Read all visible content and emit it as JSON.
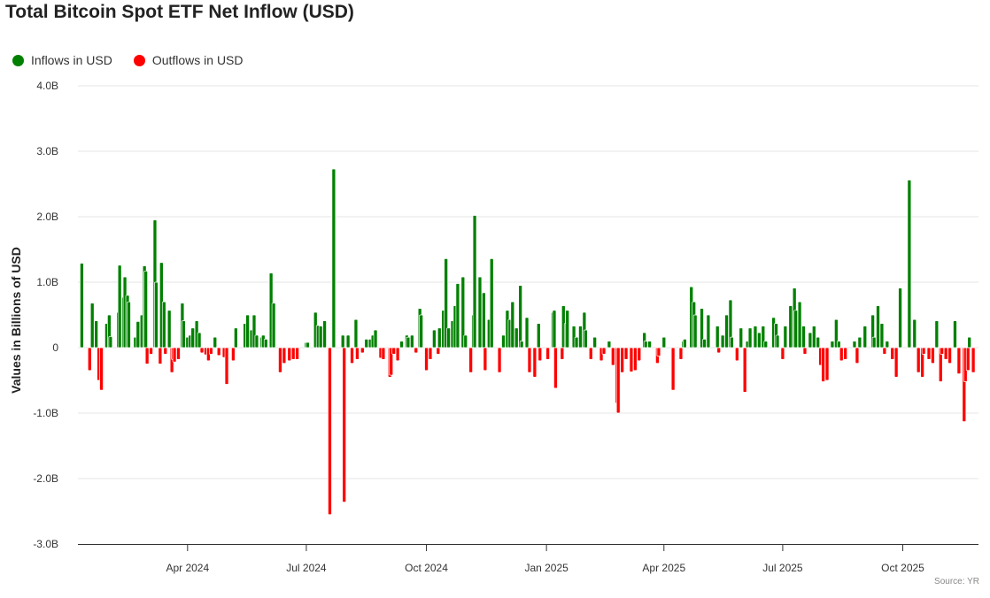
{
  "chart_data": {
    "type": "bar",
    "title": "Total Bitcoin Spot ETF Net Inflow (USD)",
    "ylabel": "Values in Billions of USD",
    "xlabel": "",
    "source": "Source: YR",
    "ylim": [
      -3.0,
      4.0
    ],
    "yticks": [
      {
        "v": 4,
        "label": "4.0B"
      },
      {
        "v": 3,
        "label": "3.0B"
      },
      {
        "v": 2,
        "label": "2.0B"
      },
      {
        "v": 1,
        "label": "1.0B"
      },
      {
        "v": 0,
        "label": "0"
      },
      {
        "v": -1,
        "label": "-1.0B"
      },
      {
        "v": -2,
        "label": "-2.0B"
      },
      {
        "v": -3,
        "label": "-3.0B"
      }
    ],
    "xlim": [
      "2024-01-08",
      "2025-11-28"
    ],
    "xticks": [
      {
        "date": "2024-04-01",
        "label": "Apr 2024"
      },
      {
        "date": "2024-07-01",
        "label": "Jul 2024"
      },
      {
        "date": "2024-10-01",
        "label": "Oct 2024"
      },
      {
        "date": "2025-01-01",
        "label": "Jan 2025"
      },
      {
        "date": "2025-04-01",
        "label": "Apr 2025"
      },
      {
        "date": "2025-07-01",
        "label": "Jul 2025"
      },
      {
        "date": "2025-10-01",
        "label": "Oct 2025"
      }
    ],
    "grid": true,
    "legend": {
      "position": "top-left",
      "items": [
        {
          "label": "Inflows in USD",
          "color": "#008000"
        },
        {
          "label": "Outflows in USD",
          "color": "#ff0000"
        }
      ]
    },
    "colors": {
      "inflow": "#008000",
      "outflow": "#ff0000"
    },
    "points": [
      [
        "2024-01-11",
        1.29
      ],
      [
        "2024-01-17",
        -0.35
      ],
      [
        "2024-01-19",
        0.68
      ],
      [
        "2024-01-22",
        0.41
      ],
      [
        "2024-01-24",
        -0.5
      ],
      [
        "2024-01-26",
        -0.65
      ],
      [
        "2024-01-30",
        0.37
      ],
      [
        "2024-02-01",
        0.5
      ],
      [
        "2024-02-02",
        0.17
      ],
      [
        "2024-02-08",
        0.54
      ],
      [
        "2024-02-09",
        1.26
      ],
      [
        "2024-02-12",
        0.77
      ],
      [
        "2024-02-13",
        1.08
      ],
      [
        "2024-02-15",
        0.8
      ],
      [
        "2024-02-16",
        0.7
      ],
      [
        "2024-02-21",
        0.16
      ],
      [
        "2024-02-23",
        0.4
      ],
      [
        "2024-02-26",
        0.5
      ],
      [
        "2024-02-28",
        1.25
      ],
      [
        "2024-02-29",
        1.17
      ],
      [
        "2024-03-01",
        -0.25
      ],
      [
        "2024-03-04",
        -0.1
      ],
      [
        "2024-03-07",
        1.95
      ],
      [
        "2024-03-08",
        1.0
      ],
      [
        "2024-03-11",
        -0.25
      ],
      [
        "2024-03-12",
        1.3
      ],
      [
        "2024-03-14",
        0.7
      ],
      [
        "2024-03-15",
        -0.1
      ],
      [
        "2024-03-18",
        0.57
      ],
      [
        "2024-03-20",
        -0.38
      ],
      [
        "2024-03-21",
        -0.18
      ],
      [
        "2024-03-22",
        -0.22
      ],
      [
        "2024-03-25",
        -0.18
      ],
      [
        "2024-03-28",
        0.68
      ],
      [
        "2024-03-29",
        0.41
      ],
      [
        "2024-04-01",
        0.16
      ],
      [
        "2024-04-03",
        0.19
      ],
      [
        "2024-04-05",
        0.3
      ],
      [
        "2024-04-08",
        0.41
      ],
      [
        "2024-04-10",
        0.23
      ],
      [
        "2024-04-12",
        -0.08
      ],
      [
        "2024-04-15",
        -0.11
      ],
      [
        "2024-04-17",
        -0.2
      ],
      [
        "2024-04-19",
        -0.1
      ],
      [
        "2024-04-22",
        0.16
      ],
      [
        "2024-04-25",
        -0.12
      ],
      [
        "2024-04-29",
        -0.15
      ],
      [
        "2024-05-01",
        -0.56
      ],
      [
        "2024-05-06",
        -0.2
      ],
      [
        "2024-05-08",
        0.3
      ],
      [
        "2024-05-15",
        0.37
      ],
      [
        "2024-05-17",
        0.5
      ],
      [
        "2024-05-20",
        0.27
      ],
      [
        "2024-05-22",
        0.5
      ],
      [
        "2024-05-24",
        0.19
      ],
      [
        "2024-05-28",
        0.16
      ],
      [
        "2024-05-29",
        0.19
      ],
      [
        "2024-05-31",
        0.13
      ],
      [
        "2024-06-04",
        1.14
      ],
      [
        "2024-06-06",
        0.68
      ],
      [
        "2024-06-11",
        -0.38
      ],
      [
        "2024-06-14",
        -0.24
      ],
      [
        "2024-06-18",
        -0.2
      ],
      [
        "2024-06-21",
        -0.18
      ],
      [
        "2024-06-24",
        -0.18
      ],
      [
        "2024-07-01",
        0.08
      ],
      [
        "2024-07-02",
        0.08
      ],
      [
        "2024-07-08",
        0.54
      ],
      [
        "2024-07-10",
        0.34
      ],
      [
        "2024-07-12",
        0.33
      ],
      [
        "2024-07-15",
        0.41
      ],
      [
        "2024-07-19",
        -2.55
      ],
      [
        "2024-07-22",
        2.73
      ],
      [
        "2024-07-29",
        0.19
      ],
      [
        "2024-07-30",
        -2.36
      ],
      [
        "2024-08-02",
        0.19
      ],
      [
        "2024-08-05",
        -0.24
      ],
      [
        "2024-08-08",
        0.43
      ],
      [
        "2024-08-09",
        -0.18
      ],
      [
        "2024-08-13",
        -0.08
      ],
      [
        "2024-08-16",
        0.13
      ],
      [
        "2024-08-19",
        0.13
      ],
      [
        "2024-08-21",
        0.19
      ],
      [
        "2024-08-23",
        0.27
      ],
      [
        "2024-08-27",
        -0.16
      ],
      [
        "2024-08-29",
        -0.18
      ],
      [
        "2024-09-03",
        -0.45
      ],
      [
        "2024-09-04",
        -0.42
      ],
      [
        "2024-09-06",
        -0.1
      ],
      [
        "2024-09-09",
        -0.2
      ],
      [
        "2024-09-12",
        0.1
      ],
      [
        "2024-09-16",
        0.19
      ],
      [
        "2024-09-17",
        0.16
      ],
      [
        "2024-09-20",
        0.19
      ],
      [
        "2024-09-23",
        -0.08
      ],
      [
        "2024-09-26",
        0.6
      ],
      [
        "2024-09-27",
        0.5
      ],
      [
        "2024-10-01",
        -0.35
      ],
      [
        "2024-10-04",
        -0.18
      ],
      [
        "2024-10-07",
        0.27
      ],
      [
        "2024-10-10",
        -0.1
      ],
      [
        "2024-10-11",
        0.3
      ],
      [
        "2024-10-14",
        0.57
      ],
      [
        "2024-10-16",
        1.36
      ],
      [
        "2024-10-18",
        0.3
      ],
      [
        "2024-10-21",
        0.41
      ],
      [
        "2024-10-23",
        0.64
      ],
      [
        "2024-10-25",
        0.98
      ],
      [
        "2024-10-29",
        1.08
      ],
      [
        "2024-10-31",
        0.19
      ],
      [
        "2024-11-04",
        -0.38
      ],
      [
        "2024-11-06",
        0.5
      ],
      [
        "2024-11-07",
        2.02
      ],
      [
        "2024-11-11",
        1.08
      ],
      [
        "2024-11-14",
        0.84
      ],
      [
        "2024-11-15",
        -0.35
      ],
      [
        "2024-11-18",
        0.43
      ],
      [
        "2024-11-20",
        1.36
      ],
      [
        "2024-11-26",
        -0.38
      ],
      [
        "2024-11-29",
        0.19
      ],
      [
        "2024-12-02",
        0.57
      ],
      [
        "2024-12-04",
        0.43
      ],
      [
        "2024-12-06",
        0.7
      ],
      [
        "2024-12-09",
        0.3
      ],
      [
        "2024-12-12",
        0.95
      ],
      [
        "2024-12-13",
        0.1
      ],
      [
        "2024-12-17",
        0.46
      ],
      [
        "2024-12-19",
        -0.38
      ],
      [
        "2024-12-23",
        -0.45
      ],
      [
        "2024-12-26",
        0.37
      ],
      [
        "2024-12-27",
        -0.2
      ],
      [
        "2025-01-02",
        -0.18
      ],
      [
        "2025-01-06",
        0.54
      ],
      [
        "2025-01-07",
        0.57
      ],
      [
        "2025-01-08",
        -0.62
      ],
      [
        "2025-01-13",
        -0.18
      ],
      [
        "2025-01-14",
        0.64
      ],
      [
        "2025-01-16",
        0.37
      ],
      [
        "2025-01-17",
        0.57
      ],
      [
        "2025-01-22",
        0.33
      ],
      [
        "2025-01-24",
        0.16
      ],
      [
        "2025-01-27",
        0.33
      ],
      [
        "2025-01-30",
        0.54
      ],
      [
        "2025-01-31",
        0.27
      ],
      [
        "2025-02-04",
        -0.18
      ],
      [
        "2025-02-07",
        0.16
      ],
      [
        "2025-02-12",
        -0.2
      ],
      [
        "2025-02-14",
        -0.1
      ],
      [
        "2025-02-18",
        0.1
      ],
      [
        "2025-02-21",
        -0.27
      ],
      [
        "2025-02-24",
        -0.85
      ],
      [
        "2025-02-25",
        -1.0
      ],
      [
        "2025-02-28",
        -0.38
      ],
      [
        "2025-03-03",
        -0.18
      ],
      [
        "2025-03-07",
        -0.37
      ],
      [
        "2025-03-10",
        -0.35
      ],
      [
        "2025-03-13",
        -0.2
      ],
      [
        "2025-03-17",
        0.23
      ],
      [
        "2025-03-18",
        0.1
      ],
      [
        "2025-03-21",
        0.1
      ],
      [
        "2025-03-27",
        -0.24
      ],
      [
        "2025-03-28",
        -0.13
      ],
      [
        "2025-04-01",
        0.16
      ],
      [
        "2025-04-08",
        -0.65
      ],
      [
        "2025-04-14",
        -0.18
      ],
      [
        "2025-04-16",
        0.1
      ],
      [
        "2025-04-17",
        0.13
      ],
      [
        "2025-04-22",
        0.93
      ],
      [
        "2025-04-24",
        0.7
      ],
      [
        "2025-04-25",
        0.5
      ],
      [
        "2025-04-30",
        0.6
      ],
      [
        "2025-05-02",
        0.13
      ],
      [
        "2025-05-05",
        0.5
      ],
      [
        "2025-05-12",
        0.33
      ],
      [
        "2025-05-13",
        -0.08
      ],
      [
        "2025-05-16",
        0.19
      ],
      [
        "2025-05-19",
        0.5
      ],
      [
        "2025-05-22",
        0.73
      ],
      [
        "2025-05-23",
        0.16
      ],
      [
        "2025-05-27",
        -0.2
      ],
      [
        "2025-05-30",
        0.3
      ],
      [
        "2025-06-02",
        -0.68
      ],
      [
        "2025-06-04",
        0.1
      ],
      [
        "2025-06-06",
        0.3
      ],
      [
        "2025-06-10",
        0.33
      ],
      [
        "2025-06-13",
        0.23
      ],
      [
        "2025-06-16",
        0.33
      ],
      [
        "2025-06-18",
        0.1
      ],
      [
        "2025-06-24",
        0.46
      ],
      [
        "2025-06-26",
        0.37
      ],
      [
        "2025-06-27",
        0.19
      ],
      [
        "2025-07-01",
        -0.18
      ],
      [
        "2025-07-03",
        0.33
      ],
      [
        "2025-07-07",
        0.64
      ],
      [
        "2025-07-10",
        0.91
      ],
      [
        "2025-07-11",
        0.57
      ],
      [
        "2025-07-14",
        0.7
      ],
      [
        "2025-07-17",
        0.33
      ],
      [
        "2025-07-18",
        -0.1
      ],
      [
        "2025-07-22",
        0.23
      ],
      [
        "2025-07-25",
        0.33
      ],
      [
        "2025-07-28",
        0.16
      ],
      [
        "2025-07-30",
        -0.27
      ],
      [
        "2025-08-01",
        -0.52
      ],
      [
        "2025-08-04",
        -0.5
      ],
      [
        "2025-08-08",
        0.1
      ],
      [
        "2025-08-11",
        0.43
      ],
      [
        "2025-08-13",
        0.1
      ],
      [
        "2025-08-15",
        -0.2
      ],
      [
        "2025-08-18",
        -0.18
      ],
      [
        "2025-08-25",
        0.1
      ],
      [
        "2025-08-27",
        -0.24
      ],
      [
        "2025-08-29",
        0.16
      ],
      [
        "2025-09-02",
        0.33
      ],
      [
        "2025-09-08",
        0.5
      ],
      [
        "2025-09-09",
        0.16
      ],
      [
        "2025-09-12",
        0.64
      ],
      [
        "2025-09-15",
        0.37
      ],
      [
        "2025-09-17",
        -0.1
      ],
      [
        "2025-09-19",
        0.1
      ],
      [
        "2025-09-23",
        -0.18
      ],
      [
        "2025-09-26",
        -0.45
      ],
      [
        "2025-09-29",
        0.91
      ],
      [
        "2025-10-06",
        2.56
      ],
      [
        "2025-10-10",
        0.43
      ],
      [
        "2025-10-13",
        -0.38
      ],
      [
        "2025-10-16",
        -0.45
      ],
      [
        "2025-10-17",
        -0.1
      ],
      [
        "2025-10-21",
        -0.18
      ],
      [
        "2025-10-24",
        -0.24
      ],
      [
        "2025-10-27",
        0.41
      ],
      [
        "2025-10-30",
        -0.52
      ],
      [
        "2025-10-31",
        -0.1
      ],
      [
        "2025-11-03",
        -0.18
      ],
      [
        "2025-11-06",
        -0.24
      ],
      [
        "2025-11-10",
        0.41
      ],
      [
        "2025-11-13",
        -0.4
      ],
      [
        "2025-11-17",
        -1.13
      ],
      [
        "2025-11-18",
        -0.52
      ],
      [
        "2025-11-20",
        -0.35
      ],
      [
        "2025-11-21",
        0.16
      ],
      [
        "2025-11-24",
        -0.38
      ]
    ]
  }
}
